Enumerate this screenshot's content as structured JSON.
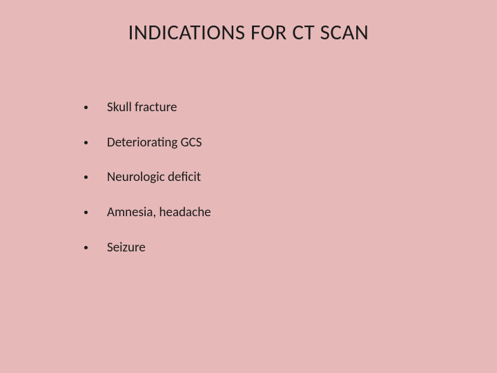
{
  "slide": {
    "background_color": "#e6b8b8",
    "text_color": "#1a1a1a",
    "title": "INDICATIONS FOR CT SCAN",
    "title_fontsize": 31,
    "body_fontsize": 19,
    "bullets": [
      "Skull fracture",
      "Deteriorating GCS",
      "Neurologic deficit",
      "Amnesia, headache",
      "Seizure"
    ]
  }
}
